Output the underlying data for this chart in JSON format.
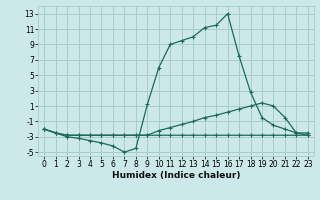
{
  "xlabel": "Humidex (Indice chaleur)",
  "bg_color": "#cce8e8",
  "grid_color": "#aacccc",
  "line_color": "#1a6b5a",
  "xlim": [
    -0.5,
    23.5
  ],
  "ylim": [
    -5.5,
    14.0
  ],
  "yticks": [
    -5,
    -3,
    -1,
    1,
    3,
    5,
    7,
    9,
    11,
    13
  ],
  "xticks": [
    0,
    1,
    2,
    3,
    4,
    5,
    6,
    7,
    8,
    9,
    10,
    11,
    12,
    13,
    14,
    15,
    16,
    17,
    18,
    19,
    20,
    21,
    22,
    23
  ],
  "line1_x": [
    0,
    1,
    2,
    3,
    4,
    5,
    6,
    7,
    8,
    9,
    10,
    11,
    12,
    13,
    14,
    15,
    16,
    17,
    18,
    19,
    20,
    21,
    22,
    23
  ],
  "line1_y": [
    -2.0,
    -2.5,
    -3.0,
    -3.2,
    -3.5,
    -3.8,
    -4.2,
    -5.0,
    -4.5,
    1.2,
    6.0,
    9.0,
    9.5,
    10.0,
    11.2,
    11.5,
    13.0,
    7.5,
    2.8,
    -0.5,
    -1.5,
    -2.0,
    -2.5,
    -2.5
  ],
  "line2_x": [
    0,
    1,
    2,
    3,
    4,
    5,
    6,
    7,
    8,
    9,
    10,
    11,
    12,
    13,
    14,
    15,
    16,
    17,
    18,
    19,
    20,
    21,
    22,
    23
  ],
  "line2_y": [
    -2.0,
    -2.5,
    -2.8,
    -2.8,
    -2.8,
    -2.8,
    -2.8,
    -2.8,
    -2.8,
    -2.8,
    -2.2,
    -1.8,
    -1.4,
    -1.0,
    -0.5,
    -0.2,
    0.2,
    0.6,
    1.0,
    1.4,
    1.0,
    -0.5,
    -2.5,
    -2.8
  ],
  "line3_x": [
    0,
    1,
    2,
    3,
    4,
    5,
    6,
    7,
    8,
    9,
    10,
    11,
    12,
    13,
    14,
    15,
    16,
    17,
    18,
    19,
    20,
    21,
    22,
    23
  ],
  "line3_y": [
    -2.0,
    -2.5,
    -2.8,
    -2.8,
    -2.8,
    -2.8,
    -2.8,
    -2.8,
    -2.8,
    -2.8,
    -2.8,
    -2.8,
    -2.8,
    -2.8,
    -2.8,
    -2.8,
    -2.8,
    -2.8,
    -2.8,
    -2.8,
    -2.8,
    -2.8,
    -2.8,
    -2.8
  ]
}
